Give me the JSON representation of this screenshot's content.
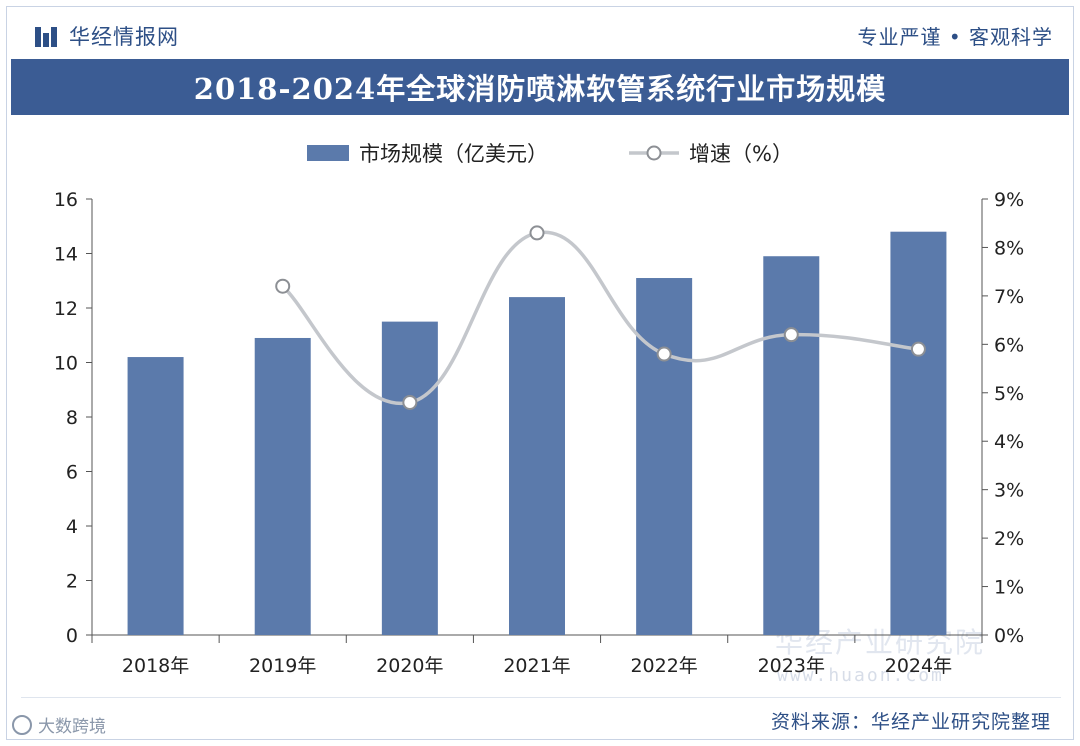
{
  "header": {
    "brand": "华经情报网",
    "motto": "专业严谨 • 客观科学"
  },
  "title": "2018-2024年全球消防喷淋软管系统行业市场规模",
  "footer": {
    "source": "资料来源：华经产业研究院整理",
    "badge": "大数跨境",
    "watermark_cn": "华经产业研究院",
    "watermark_url": "www.huaon.com"
  },
  "colors": {
    "bar": "#5b7aab",
    "line": "#c4c7cc",
    "title_bg": "#3b5c94",
    "brand": "#2d4f86"
  },
  "chart_data": {
    "type": "bar",
    "categories": [
      "2018年",
      "2019年",
      "2020年",
      "2021年",
      "2022年",
      "2023年",
      "2024年"
    ],
    "series": [
      {
        "name": "市场规模（亿美元）",
        "type": "bar",
        "axis": "left",
        "values": [
          10.2,
          10.9,
          11.5,
          12.4,
          13.1,
          13.9,
          14.8
        ]
      },
      {
        "name": "增速（%）",
        "type": "line",
        "axis": "right",
        "values": [
          null,
          7.2,
          4.8,
          8.3,
          5.8,
          6.2,
          5.9
        ]
      }
    ],
    "y_left": {
      "min": 0,
      "max": 16,
      "ticks": [
        "0",
        "2",
        "4",
        "6",
        "8",
        "10",
        "12",
        "14",
        "16"
      ]
    },
    "y_right": {
      "min": 0,
      "max": 9,
      "ticks": [
        "0%",
        "1%",
        "2%",
        "3%",
        "4%",
        "5%",
        "6%",
        "7%",
        "8%",
        "9%"
      ]
    },
    "grid": false,
    "legend_position": "top-center"
  }
}
